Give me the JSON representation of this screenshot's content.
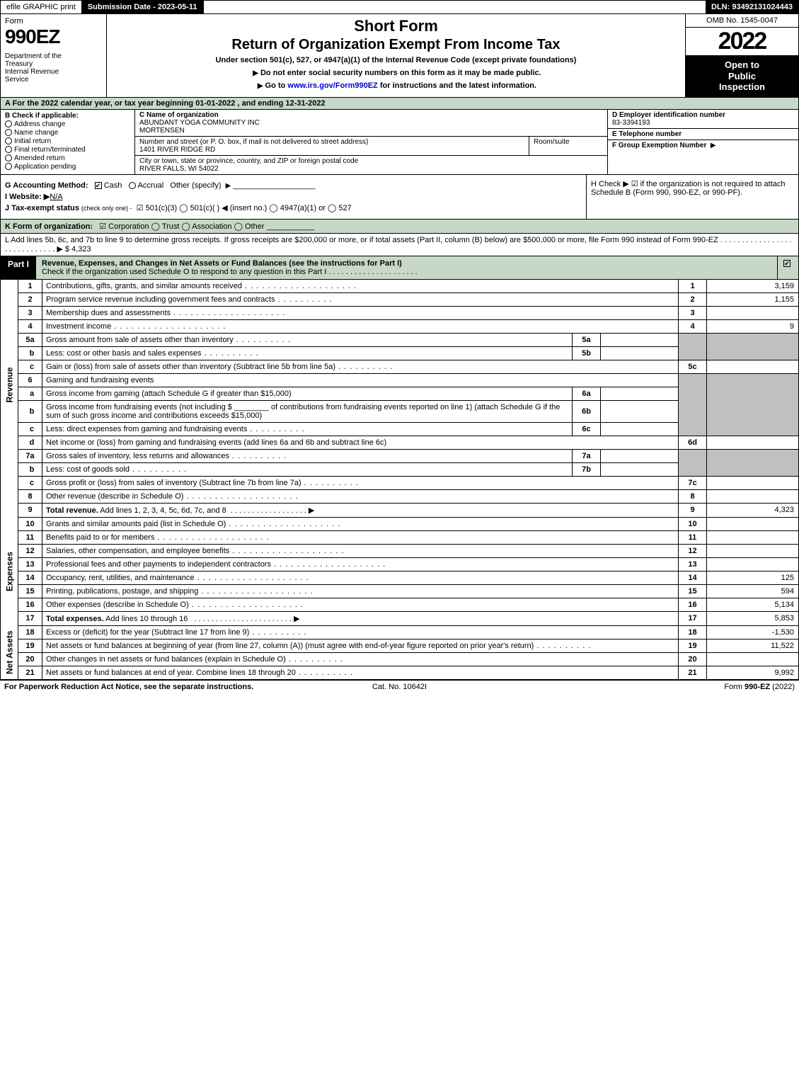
{
  "topbar": {
    "efile": "efile GRAPHIC print",
    "submission": "Submission Date - 2023-05-11",
    "dln": "DLN: 93492131024443"
  },
  "header": {
    "form_label": "Form",
    "form_number": "990EZ",
    "dept": "Department of the Treasury\nInternal Revenue Service",
    "short_form": "Short Form",
    "title": "Return of Organization Exempt From Income Tax",
    "subtitle": "Under section 501(c), 527, or 4947(a)(1) of the Internal Revenue Code (except private foundations)",
    "note1": "Do not enter social security numbers on this form as it may be made public.",
    "note2_prefix": "Go to ",
    "note2_link": "www.irs.gov/Form990EZ",
    "note2_suffix": " for instructions and the latest information.",
    "omb": "OMB No. 1545-0047",
    "year": "2022",
    "open": "Open to Public Inspection"
  },
  "section_a": "A  For the 2022 calendar year, or tax year beginning 01-01-2022  , and ending 12-31-2022",
  "section_b": {
    "label": "B  Check if applicable:",
    "items": [
      "Address change",
      "Name change",
      "Initial return",
      "Final return/terminated",
      "Amended return",
      "Application pending"
    ]
  },
  "section_c": {
    "name_label": "C Name of organization",
    "name1": "ABUNDANT YOGA COMMUNITY INC",
    "name2": "MORTENSEN",
    "street_label": "Number and street (or P. O. box, if mail is not delivered to street address)",
    "street": "1401 RIVER RIDGE RD",
    "room_label": "Room/suite",
    "city_label": "City or town, state or province, country, and ZIP or foreign postal code",
    "city": "RIVER FALLS, WI  54022"
  },
  "section_d": {
    "label": "D Employer identification number",
    "value": "83-3394193"
  },
  "section_e": {
    "label": "E Telephone number",
    "value": ""
  },
  "section_f": {
    "label": "F Group Exemption Number",
    "arrow": "▶"
  },
  "section_g": {
    "label": "G Accounting Method:",
    "cash": "Cash",
    "accrual": "Accrual",
    "other": "Other (specify)"
  },
  "section_h": {
    "text": "H  Check ▶  ☑  if the organization is not required to attach Schedule B (Form 990, 990-EZ, or 990-PF)."
  },
  "section_i": {
    "label": "I Website: ▶",
    "value": "N/A"
  },
  "section_j": {
    "label": "J Tax-exempt status",
    "sub": "(check only one) -",
    "opts": "☑ 501(c)(3)  ◯ 501(c)(  ) ◀ (insert no.)  ◯ 4947(a)(1) or  ◯ 527"
  },
  "section_k": {
    "label": "K Form of organization:",
    "opts": "☑ Corporation   ◯ Trust   ◯ Association   ◯ Other"
  },
  "section_l": {
    "text": "L Add lines 5b, 6c, and 7b to line 9 to determine gross receipts. If gross receipts are $200,000 or more, or if total assets (Part II, column (B) below) are $500,000 or more, file Form 990 instead of Form 990-EZ  .  .  .  .  .  .  .  .  .  .  .  .  .  .  .  .  .  .  .  .  .  .  .  .  .  .  .  .  .  ▶ $ 4,323"
  },
  "part1": {
    "tab": "Part I",
    "title": "Revenue, Expenses, and Changes in Net Assets or Fund Balances (see the instructions for Part I)",
    "check_line": "Check if the organization used Schedule O to respond to any question in this Part I  .  .  .  .  .  .  .  .  .  .  .  .  .  .  .  .  .  .  .  .  ."
  },
  "sidebar": {
    "revenue": "Revenue",
    "expenses": "Expenses",
    "netassets": "Net Assets"
  },
  "lines": {
    "l1": {
      "n": "1",
      "d": "Contributions, gifts, grants, and similar amounts received",
      "r": "1",
      "v": "3,159"
    },
    "l2": {
      "n": "2",
      "d": "Program service revenue including government fees and contracts",
      "r": "2",
      "v": "1,155"
    },
    "l3": {
      "n": "3",
      "d": "Membership dues and assessments",
      "r": "3",
      "v": ""
    },
    "l4": {
      "n": "4",
      "d": "Investment income",
      "r": "4",
      "v": "9"
    },
    "l5a": {
      "n": "5a",
      "d": "Gross amount from sale of assets other than inventory",
      "m": "5a"
    },
    "l5b": {
      "n": "b",
      "d": "Less: cost or other basis and sales expenses",
      "m": "5b"
    },
    "l5c": {
      "n": "c",
      "d": "Gain or (loss) from sale of assets other than inventory (Subtract line 5b from line 5a)",
      "r": "5c",
      "v": ""
    },
    "l6": {
      "n": "6",
      "d": "Gaming and fundraising events"
    },
    "l6a": {
      "n": "a",
      "d": "Gross income from gaming (attach Schedule G if greater than $15,000)",
      "m": "6a"
    },
    "l6b": {
      "n": "b",
      "d1": "Gross income from fundraising events (not including $",
      "d2": "of contributions from fundraising events reported on line 1) (attach Schedule G if the sum of such gross income and contributions exceeds $15,000)",
      "m": "6b"
    },
    "l6c": {
      "n": "c",
      "d": "Less: direct expenses from gaming and fundraising events",
      "m": "6c"
    },
    "l6d": {
      "n": "d",
      "d": "Net income or (loss) from gaming and fundraising events (add lines 6a and 6b and subtract line 6c)",
      "r": "6d",
      "v": ""
    },
    "l7a": {
      "n": "7a",
      "d": "Gross sales of inventory, less returns and allowances",
      "m": "7a"
    },
    "l7b": {
      "n": "b",
      "d": "Less: cost of goods sold",
      "m": "7b"
    },
    "l7c": {
      "n": "c",
      "d": "Gross profit or (loss) from sales of inventory (Subtract line 7b from line 7a)",
      "r": "7c",
      "v": ""
    },
    "l8": {
      "n": "8",
      "d": "Other revenue (describe in Schedule O)",
      "r": "8",
      "v": ""
    },
    "l9": {
      "n": "9",
      "d": "Total revenue. Add lines 1, 2, 3, 4, 5c, 6d, 7c, and 8",
      "r": "9",
      "v": "4,323",
      "bold": true
    },
    "l10": {
      "n": "10",
      "d": "Grants and similar amounts paid (list in Schedule O)",
      "r": "10",
      "v": ""
    },
    "l11": {
      "n": "11",
      "d": "Benefits paid to or for members",
      "r": "11",
      "v": ""
    },
    "l12": {
      "n": "12",
      "d": "Salaries, other compensation, and employee benefits",
      "r": "12",
      "v": ""
    },
    "l13": {
      "n": "13",
      "d": "Professional fees and other payments to independent contractors",
      "r": "13",
      "v": ""
    },
    "l14": {
      "n": "14",
      "d": "Occupancy, rent, utilities, and maintenance",
      "r": "14",
      "v": "125"
    },
    "l15": {
      "n": "15",
      "d": "Printing, publications, postage, and shipping",
      "r": "15",
      "v": "594"
    },
    "l16": {
      "n": "16",
      "d": "Other expenses (describe in Schedule O)",
      "r": "16",
      "v": "5,134"
    },
    "l17": {
      "n": "17",
      "d": "Total expenses. Add lines 10 through 16",
      "r": "17",
      "v": "5,853",
      "bold": true
    },
    "l18": {
      "n": "18",
      "d": "Excess or (deficit) for the year (Subtract line 17 from line 9)",
      "r": "18",
      "v": "-1,530"
    },
    "l19": {
      "n": "19",
      "d": "Net assets or fund balances at beginning of year (from line 27, column (A)) (must agree with end-of-year figure reported on prior year's return)",
      "r": "19",
      "v": "11,522"
    },
    "l20": {
      "n": "20",
      "d": "Other changes in net assets or fund balances (explain in Schedule O)",
      "r": "20",
      "v": ""
    },
    "l21": {
      "n": "21",
      "d": "Net assets or fund balances at end of year. Combine lines 18 through 20",
      "r": "21",
      "v": "9,992"
    }
  },
  "footer": {
    "left": "For Paperwork Reduction Act Notice, see the separate instructions.",
    "mid": "Cat. No. 10642I",
    "right_prefix": "Form ",
    "right_bold": "990-EZ",
    "right_suffix": " (2022)"
  },
  "colors": {
    "green_bg": "#c8d8c8",
    "shade": "#c0c0c0",
    "black": "#000000",
    "link": "#0000cc"
  }
}
